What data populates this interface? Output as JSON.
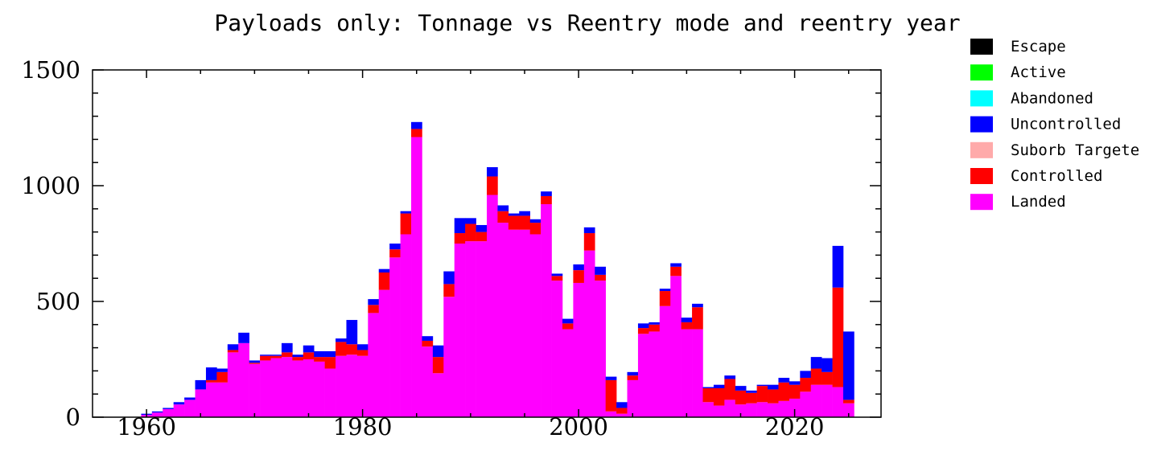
{
  "chart_data": {
    "type": "bar",
    "stacked": true,
    "title": "Payloads only: Tonnage vs Reentry mode and reentry year",
    "xlabel": "",
    "ylabel": "",
    "xlim": [
      1955,
      2028
    ],
    "ylim": [
      0,
      1500
    ],
    "x_ticks": [
      1960,
      1980,
      2000,
      2020
    ],
    "y_ticks": [
      0,
      500,
      1000,
      1500
    ],
    "grid": false,
    "legend_position": "outside-top-right",
    "colors": {
      "Escape": "#000000",
      "Active": "#00ff00",
      "Abandoned": "#00ffff",
      "Uncontrolled": "#0000ff",
      "Suborb Targeted": "#ffaaaa",
      "Controlled": "#ff0000",
      "Landed": "#ff00ff"
    },
    "legend": [
      "Escape",
      "Active",
      "Abandoned",
      "Uncontrolled",
      "Suborb Targeted",
      "Controlled",
      "Landed"
    ],
    "legend_display": [
      "Escape",
      "Active",
      "Abandoned",
      "Uncontrolled",
      "Suborb Targete",
      "Controlled",
      "Landed"
    ],
    "x": [
      1957,
      1958,
      1959,
      1960,
      1961,
      1962,
      1963,
      1964,
      1965,
      1966,
      1967,
      1968,
      1969,
      1970,
      1971,
      1972,
      1973,
      1974,
      1975,
      1976,
      1977,
      1978,
      1979,
      1980,
      1981,
      1982,
      1983,
      1984,
      1985,
      1986,
      1987,
      1988,
      1989,
      1990,
      1991,
      1992,
      1993,
      1994,
      1995,
      1996,
      1997,
      1998,
      1999,
      2000,
      2001,
      2002,
      2003,
      2004,
      2005,
      2006,
      2007,
      2008,
      2009,
      2010,
      2011,
      2012,
      2013,
      2014,
      2015,
      2016,
      2017,
      2018,
      2019,
      2020,
      2021,
      2022,
      2023,
      2024,
      2025
    ],
    "series": [
      {
        "name": "Landed",
        "values": [
          0,
          0,
          0,
          10,
          20,
          35,
          55,
          75,
          120,
          150,
          150,
          280,
          320,
          230,
          245,
          255,
          260,
          245,
          250,
          240,
          210,
          265,
          270,
          265,
          450,
          550,
          690,
          790,
          1210,
          305,
          190,
          520,
          750,
          760,
          760,
          960,
          840,
          810,
          810,
          790,
          920,
          590,
          380,
          580,
          720,
          590,
          25,
          15,
          160,
          360,
          370,
          480,
          610,
          380,
          380,
          65,
          50,
          75,
          55,
          60,
          65,
          60,
          70,
          80,
          110,
          140,
          140,
          130,
          60
        ]
      },
      {
        "name": "Controlled",
        "values": [
          0,
          0,
          0,
          0,
          0,
          0,
          0,
          0,
          0,
          10,
          45,
          10,
          0,
          5,
          20,
          10,
          20,
          15,
          30,
          20,
          50,
          60,
          45,
          25,
          35,
          75,
          35,
          90,
          35,
          25,
          70,
          55,
          45,
          75,
          40,
          80,
          50,
          60,
          60,
          50,
          35,
          20,
          25,
          55,
          75,
          25,
          135,
          25,
          20,
          25,
          30,
          65,
          40,
          30,
          95,
          60,
          75,
          90,
          60,
          45,
          70,
          60,
          80,
          60,
          60,
          70,
          55,
          430,
          15
        ]
      },
      {
        "name": "Uncontrolled",
        "values": [
          0,
          0,
          0,
          5,
          5,
          5,
          10,
          10,
          40,
          55,
          15,
          25,
          45,
          10,
          5,
          5,
          40,
          10,
          30,
          25,
          25,
          15,
          105,
          25,
          25,
          15,
          25,
          10,
          30,
          20,
          50,
          55,
          65,
          25,
          30,
          40,
          25,
          10,
          20,
          15,
          20,
          10,
          20,
          25,
          25,
          35,
          15,
          25,
          15,
          20,
          10,
          10,
          15,
          20,
          15,
          5,
          15,
          15,
          20,
          10,
          5,
          20,
          20,
          15,
          30,
          50,
          60,
          180,
          295
        ]
      }
    ]
  }
}
